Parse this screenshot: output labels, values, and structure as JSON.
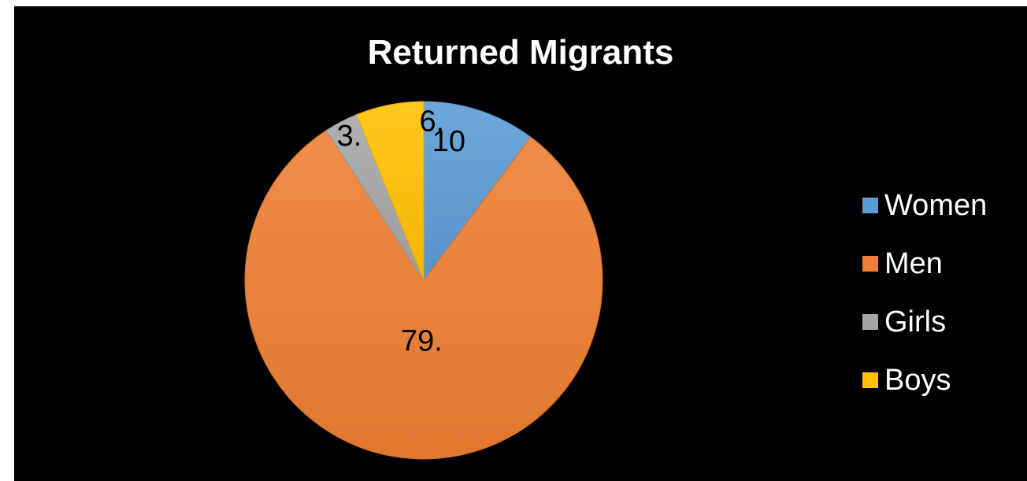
{
  "chart_data": {
    "type": "pie",
    "title": "Returned Migrants",
    "categories": [
      "Women",
      "Men",
      "Girls",
      "Boys"
    ],
    "values": [
      10,
      79,
      3,
      6
    ],
    "data_labels": [
      "10",
      "79.",
      "3.",
      "6."
    ],
    "colors": [
      "#5B9BD5",
      "#ED7D31",
      "#A5A5A5",
      "#FFC000"
    ],
    "legend_position": "right"
  }
}
